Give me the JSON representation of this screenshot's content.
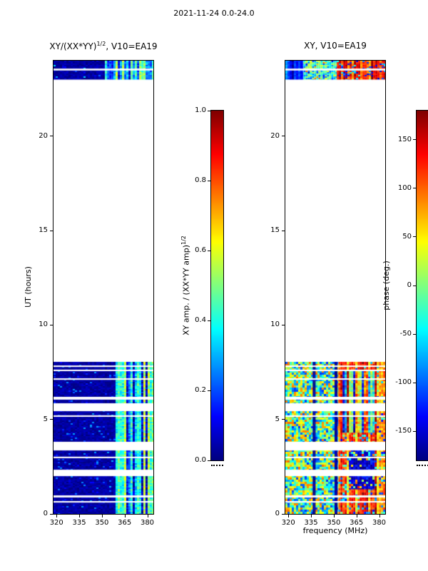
{
  "figure": {
    "title": "2021-11-24 0.0-24.0",
    "background": "#ffffff",
    "text_color": "#000000"
  },
  "panels": {
    "left": {
      "title_pre": "XY/(XX*YY)",
      "title_sup": "1/2",
      "title_post": ", V10=EA19",
      "ylabel": "UT (hours)"
    },
    "right": {
      "title": "XY, V10=EA19",
      "xlabel": "frequency (MHz)"
    }
  },
  "colorbars": {
    "amp": {
      "label_pre": "XY amp. / (XX*YY amp)",
      "label_sup": "1/2"
    },
    "phase": {
      "label": "phase (deg.)"
    }
  },
  "chart_data": [
    {
      "id": "xy_over_sqrt_xxyy",
      "type": "heatmap",
      "title": "XY/(XX*YY)^(1/2), V10=EA19",
      "xlabel": "frequency (MHz)",
      "ylabel": "UT (hours)",
      "xlim": [
        318,
        384
      ],
      "ylim": [
        0,
        24
      ],
      "xtick_values": [
        320,
        335,
        350,
        365,
        380
      ],
      "ytick_values": [
        0,
        5,
        10,
        15,
        20
      ],
      "colormap": "jet",
      "vmin": 0.0,
      "vmax": 1.0,
      "colorbar_label": "XY amp. / (XX*YY amp)^(1/2)",
      "colorbar_tick_values": [
        0.0,
        0.2,
        0.4,
        0.6,
        0.8,
        1.0
      ],
      "colorbar_tick_labels": [
        "0.0",
        "0.2",
        "0.4",
        "0.6",
        "0.8",
        "1.0"
      ],
      "time_coverage_hours": [
        [
          0.0,
          8.05
        ],
        [
          23.0,
          24.0
        ]
      ],
      "no_data_gaps_hours": [
        [
          0.6,
          0.68
        ],
        [
          0.87,
          0.98
        ],
        [
          2.0,
          2.34
        ],
        [
          2.95,
          3.03
        ],
        [
          3.36,
          3.82
        ],
        [
          5.14,
          5.22
        ],
        [
          5.44,
          5.86
        ],
        [
          6.05,
          6.2
        ],
        [
          7.1,
          7.18
        ],
        [
          7.56,
          7.64
        ],
        [
          7.78,
          7.86
        ],
        [
          23.48,
          23.58
        ]
      ],
      "seed": 42,
      "blocks": [
        {
          "t": [
            0.0,
            8.05
          ],
          "f": [
            318,
            359
          ],
          "v": [
            0.0,
            0.07
          ],
          "cell": [
            3,
            2
          ],
          "speckle": 0.05,
          "speckle_v": [
            0.1,
            0.3
          ]
        },
        {
          "t": [
            0.0,
            8.05
          ],
          "f": [
            359,
            384
          ],
          "v": [
            0.05,
            0.6
          ],
          "cell": [
            3,
            2
          ],
          "col_coherent": true,
          "jitter": 0.35
        },
        {
          "t": [
            23.0,
            24.0
          ],
          "f": [
            318,
            352
          ],
          "v": [
            0.0,
            0.07
          ],
          "cell": [
            3,
            2
          ],
          "speckle": 0.07,
          "speckle_v": [
            0.1,
            0.35
          ]
        },
        {
          "t": [
            23.0,
            24.0
          ],
          "f": [
            352,
            384
          ],
          "v": [
            0.05,
            0.55
          ],
          "cell": [
            3,
            2
          ],
          "col_coherent": true,
          "jitter": 0.35
        }
      ]
    },
    {
      "id": "xy_phase",
      "type": "heatmap",
      "title": "XY, V10=EA19",
      "xlabel": "frequency (MHz)",
      "ylabel": "UT (hours)",
      "xlim": [
        318,
        384
      ],
      "ylim": [
        0,
        24
      ],
      "xtick_values": [
        320,
        335,
        350,
        365,
        380
      ],
      "ytick_values": [
        0,
        5,
        10,
        15,
        20
      ],
      "colormap": "jet",
      "vmin": -180,
      "vmax": 180,
      "colorbar_label": "phase (deg.)",
      "colorbar_tick_values": [
        -150,
        -100,
        -50,
        0,
        50,
        100,
        150
      ],
      "colorbar_tick_labels": [
        "-150",
        "-100",
        "-50",
        "0",
        "50",
        "100",
        "150"
      ],
      "time_coverage_hours": [
        [
          0.0,
          8.05
        ],
        [
          23.0,
          24.0
        ]
      ],
      "no_data_gaps_hours": [
        [
          0.6,
          0.68
        ],
        [
          0.87,
          0.98
        ],
        [
          2.0,
          2.34
        ],
        [
          2.95,
          3.03
        ],
        [
          3.36,
          3.82
        ],
        [
          5.14,
          5.22
        ],
        [
          5.44,
          5.86
        ],
        [
          6.05,
          6.2
        ],
        [
          7.1,
          7.18
        ],
        [
          7.56,
          7.64
        ],
        [
          7.78,
          7.86
        ],
        [
          23.48,
          23.58
        ]
      ],
      "seed": 7,
      "blocks": [
        {
          "t": [
            0.0,
            8.05
          ],
          "f": [
            318,
            353
          ],
          "v": [
            -120,
            100
          ],
          "cell": [
            3,
            3
          ]
        },
        {
          "t": [
            0.0,
            8.05
          ],
          "f": [
            353,
            384
          ],
          "v": [
            40,
            178
          ],
          "cell": [
            3,
            3
          ],
          "col_coherent": true,
          "jitter": 0.5,
          "speckle": 0.12,
          "speckle_v": [
            -140,
            0
          ]
        },
        {
          "t": [
            4.3,
            7.6
          ],
          "f": [
            353,
            377
          ],
          "v": [
            -150,
            170
          ],
          "cell": [
            3,
            3
          ],
          "col_coherent": true,
          "jitter": 0.25
        },
        {
          "t": [
            1.3,
            3.4
          ],
          "f": [
            360,
            377
          ],
          "v": [
            -178,
            -110
          ],
          "cell": [
            3,
            3
          ],
          "speckle": 0.15,
          "speckle_v": [
            -60,
            130
          ]
        },
        {
          "t": [
            0.0,
            8.05
          ],
          "f": [
            336,
            338
          ],
          "v": [
            -180,
            -160
          ],
          "cell": [
            2,
            4
          ]
        },
        {
          "t": [
            0.0,
            8.05
          ],
          "f": [
            350.5,
            352.5
          ],
          "v": [
            -180,
            -160
          ],
          "cell": [
            2,
            4
          ]
        },
        {
          "t": [
            23.0,
            24.0
          ],
          "f": [
            318,
            330
          ],
          "v": [
            -172,
            -80
          ],
          "cell": [
            3,
            2
          ],
          "col_coherent": true,
          "jitter": 0.3
        },
        {
          "t": [
            23.0,
            24.0
          ],
          "f": [
            330,
            352
          ],
          "v": [
            -110,
            40
          ],
          "cell": [
            3,
            2
          ],
          "speckle": 0.15,
          "speckle_v": [
            -175,
            130
          ]
        },
        {
          "t": [
            23.0,
            24.0
          ],
          "f": [
            352,
            384
          ],
          "v": [
            70,
            178
          ],
          "cell": [
            3,
            2
          ],
          "col_coherent": true,
          "jitter": 0.4,
          "speckle": 0.18,
          "speckle_v": [
            -160,
            -40
          ]
        }
      ]
    }
  ]
}
